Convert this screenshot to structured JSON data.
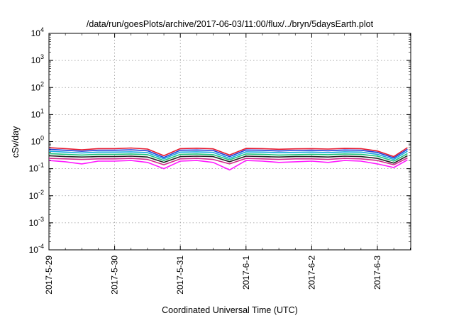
{
  "chart_data": {
    "type": "line",
    "title": "/data/run/goesPlots/archive/2017-06-03/11:00/flux/../bryn/5daysEarth.plot",
    "xlabel": "Coordinated Universal Time (UTC)",
    "ylabel": "cSv/day",
    "yscale": "log",
    "ylim": [
      0.0001,
      10000
    ],
    "y_ticks": [
      {
        "value": 0.0001,
        "base": "10",
        "exp": "-4"
      },
      {
        "value": 0.001,
        "base": "10",
        "exp": "-3"
      },
      {
        "value": 0.01,
        "base": "10",
        "exp": "-2"
      },
      {
        "value": 0.1,
        "base": "10",
        "exp": "-1"
      },
      {
        "value": 1,
        "base": "10",
        "exp": "0"
      },
      {
        "value": 10,
        "base": "10",
        "exp": "1"
      },
      {
        "value": 100,
        "base": "10",
        "exp": "2"
      },
      {
        "value": 1000,
        "base": "10",
        "exp": "3"
      },
      {
        "value": 10000,
        "base": "10",
        "exp": "4"
      }
    ],
    "x_ticks": [
      "2017-5-29",
      "2017-5-30",
      "2017-5-31",
      "2017-6-1",
      "2017-6-2",
      "2017-6-3"
    ],
    "xlim": [
      "2017-05-29 00:00",
      "2017-06-03 11:00"
    ],
    "grid": true,
    "legend": "none",
    "x": [
      "2017-05-29 00:00",
      "2017-05-29 06:00",
      "2017-05-29 12:00",
      "2017-05-29 18:00",
      "2017-05-30 00:00",
      "2017-05-30 06:00",
      "2017-05-30 12:00",
      "2017-05-30 18:00",
      "2017-05-31 00:00",
      "2017-05-31 06:00",
      "2017-05-31 12:00",
      "2017-05-31 18:00",
      "2017-06-01 00:00",
      "2017-06-01 06:00",
      "2017-06-01 12:00",
      "2017-06-01 18:00",
      "2017-06-02 00:00",
      "2017-06-02 06:00",
      "2017-06-02 12:00",
      "2017-06-02 18:00",
      "2017-06-03 00:00",
      "2017-06-03 06:00",
      "2017-06-03 11:00"
    ],
    "series": [
      {
        "color": "#e8182c",
        "values": [
          0.6,
          0.55,
          0.5,
          0.55,
          0.55,
          0.58,
          0.53,
          0.3,
          0.55,
          0.57,
          0.54,
          0.32,
          0.56,
          0.55,
          0.52,
          0.54,
          0.55,
          0.53,
          0.56,
          0.55,
          0.45,
          0.28,
          0.6
        ]
      },
      {
        "color": "#1f3fd8",
        "values": [
          0.52,
          0.48,
          0.44,
          0.48,
          0.48,
          0.5,
          0.46,
          0.26,
          0.48,
          0.49,
          0.47,
          0.28,
          0.49,
          0.48,
          0.45,
          0.47,
          0.48,
          0.46,
          0.49,
          0.48,
          0.4,
          0.25,
          0.52
        ]
      },
      {
        "color": "#18a8e0",
        "values": [
          0.44,
          0.41,
          0.38,
          0.41,
          0.41,
          0.42,
          0.39,
          0.23,
          0.41,
          0.42,
          0.4,
          0.24,
          0.42,
          0.41,
          0.39,
          0.4,
          0.41,
          0.39,
          0.42,
          0.41,
          0.34,
          0.22,
          0.44
        ]
      },
      {
        "color": "#1cc47a",
        "values": [
          0.36,
          0.34,
          0.32,
          0.34,
          0.34,
          0.35,
          0.33,
          0.2,
          0.34,
          0.35,
          0.33,
          0.21,
          0.35,
          0.34,
          0.32,
          0.33,
          0.34,
          0.33,
          0.35,
          0.34,
          0.29,
          0.19,
          0.36
        ]
      },
      {
        "color": "#222222",
        "values": [
          0.3,
          0.28,
          0.27,
          0.28,
          0.28,
          0.29,
          0.27,
          0.17,
          0.28,
          0.29,
          0.28,
          0.18,
          0.29,
          0.28,
          0.27,
          0.28,
          0.28,
          0.27,
          0.29,
          0.28,
          0.24,
          0.16,
          0.3
        ]
      },
      {
        "color": "#d12a8a",
        "values": [
          0.24,
          0.23,
          0.22,
          0.23,
          0.23,
          0.24,
          0.22,
          0.14,
          0.23,
          0.24,
          0.22,
          0.15,
          0.24,
          0.23,
          0.22,
          0.23,
          0.23,
          0.22,
          0.24,
          0.23,
          0.2,
          0.14,
          0.25
        ]
      },
      {
        "color": "#ff1aff",
        "values": [
          0.2,
          0.18,
          0.15,
          0.19,
          0.19,
          0.2,
          0.17,
          0.1,
          0.19,
          0.2,
          0.17,
          0.09,
          0.2,
          0.19,
          0.17,
          0.18,
          0.19,
          0.17,
          0.2,
          0.19,
          0.15,
          0.11,
          0.21
        ]
      }
    ]
  }
}
